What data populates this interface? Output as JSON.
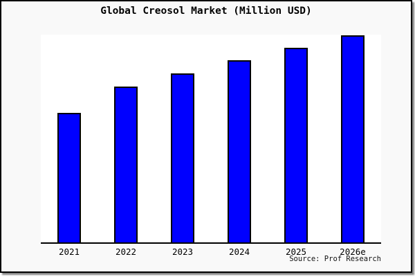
{
  "title": "Global Creosol Market (Million USD)",
  "source_caption": "Source: Prof Research",
  "chart_data": {
    "type": "bar",
    "title": "Global Creosol Market (Million USD)",
    "categories": [
      "2021",
      "2022",
      "2023",
      "2024",
      "2025",
      "2026e"
    ],
    "values": [
      62.6,
      75.3,
      81.6,
      87.8,
      93.8,
      100
    ],
    "xlabel": "",
    "ylabel": "",
    "ylim": [
      0,
      100.3
    ],
    "grid": false,
    "legend": false,
    "y_axis_ticks_visible": false,
    "bar_color": "#0000ff",
    "bar_border_color": "#000000",
    "axis_color": "#000000",
    "plot_background": "#ffffff",
    "outer_background": "#f9f9f9",
    "frame_border_color": "#000000"
  }
}
